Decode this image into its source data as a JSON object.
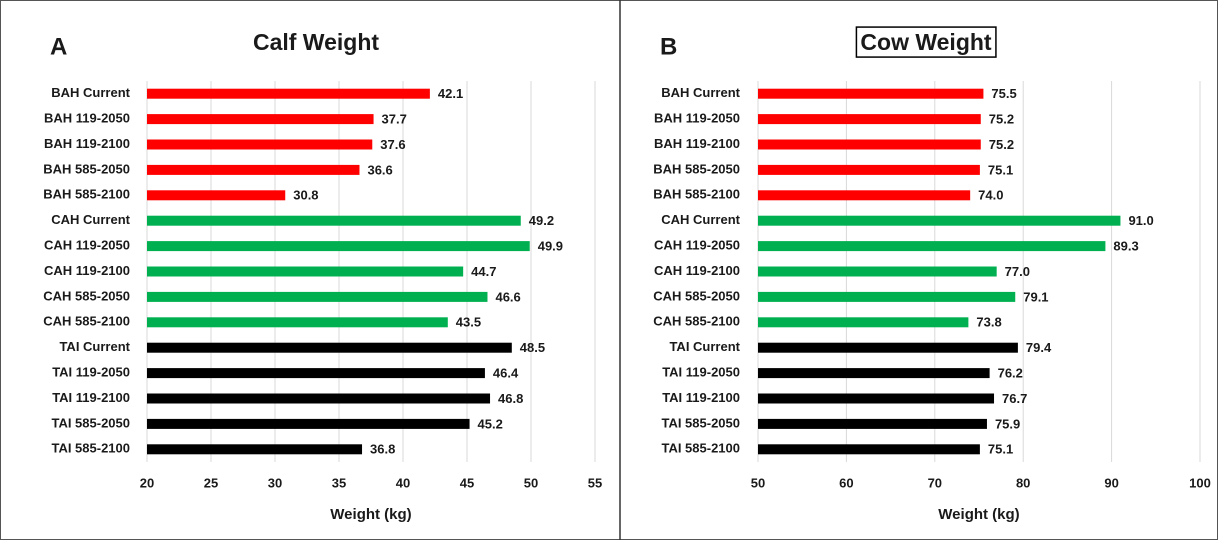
{
  "chart_data": [
    {
      "type": "bar",
      "orientation": "horizontal",
      "panel_label": "A",
      "title": "Calf Weight",
      "x_label": "Weight (kg)",
      "categories": [
        "BAH Current",
        "BAH 119-2050",
        "BAH 119-2100",
        "BAH 585-2050",
        "BAH 585-2100",
        "CAH Current",
        "CAH 119-2050",
        "CAH 119-2100",
        "CAH 585-2050",
        "CAH 585-2100",
        "TAI Current",
        "TAI 119-2050",
        "TAI 119-2100",
        "TAI 585-2050",
        "TAI 585-2100"
      ],
      "values": [
        42.1,
        37.7,
        37.6,
        36.6,
        30.8,
        49.2,
        49.9,
        44.7,
        46.6,
        43.5,
        48.5,
        46.4,
        46.8,
        45.2,
        36.8
      ],
      "colors": [
        "#ff0000",
        "#ff0000",
        "#ff0000",
        "#ff0000",
        "#ff0000",
        "#00b050",
        "#00b050",
        "#00b050",
        "#00b050",
        "#00b050",
        "#000000",
        "#000000",
        "#000000",
        "#000000",
        "#000000"
      ],
      "xlim": [
        20,
        55
      ],
      "xticks": [
        20,
        25,
        30,
        35,
        40,
        45,
        50,
        55
      ],
      "grid": true,
      "title_boxed": false
    },
    {
      "type": "bar",
      "orientation": "horizontal",
      "panel_label": "B",
      "title": "Cow Weight",
      "x_label": "Weight (kg)",
      "categories": [
        "BAH Current",
        "BAH 119-2050",
        "BAH 119-2100",
        "BAH 585-2050",
        "BAH 585-2100",
        "CAH Current",
        "CAH 119-2050",
        "CAH 119-2100",
        "CAH 585-2050",
        "CAH 585-2100",
        "TAI Current",
        "TAI 119-2050",
        "TAI 119-2100",
        "TAI 585-2050",
        "TAI 585-2100"
      ],
      "values": [
        75.5,
        75.2,
        75.2,
        75.1,
        74,
        91,
        89.3,
        77,
        79.1,
        73.8,
        79.4,
        76.2,
        76.7,
        75.9,
        75.1
      ],
      "value_labels": [
        "75.5",
        "75.2",
        "75.2",
        "75.1",
        "74.0",
        "91.0",
        "89.3",
        "77.0",
        "79.1",
        "73.8",
        "79.4",
        "76.2",
        "76.7",
        "75.9",
        "75.1"
      ],
      "colors": [
        "#ff0000",
        "#ff0000",
        "#ff0000",
        "#ff0000",
        "#ff0000",
        "#00b050",
        "#00b050",
        "#00b050",
        "#00b050",
        "#00b050",
        "#000000",
        "#000000",
        "#000000",
        "#000000",
        "#000000"
      ],
      "xlim": [
        50,
        100
      ],
      "xticks": [
        50,
        60,
        70,
        80,
        90,
        100
      ],
      "grid": true,
      "title_boxed": true
    }
  ]
}
